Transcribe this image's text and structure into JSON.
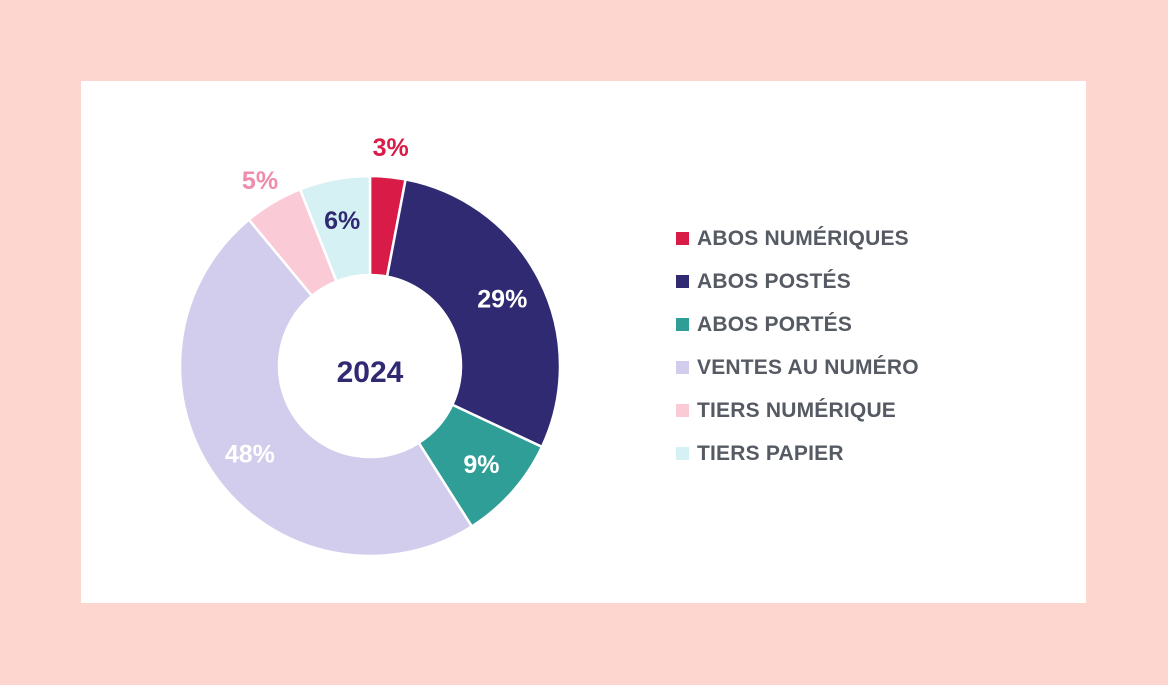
{
  "chart_data": {
    "type": "pie",
    "center_label": "2024",
    "slices": [
      {
        "label": "ABOS NUMÉRIQUES",
        "value": 3,
        "value_label": "3%",
        "color": "#d81b47",
        "label_color": "#d81b47"
      },
      {
        "label": "ABOS POSTÉS",
        "value": 29,
        "value_label": "29%",
        "color": "#2f2a72",
        "label_color": "#ffffff"
      },
      {
        "label": "ABOS PORTÉS",
        "value": 9,
        "value_label": "9%",
        "color": "#2e9e97",
        "label_color": "#ffffff"
      },
      {
        "label": "VENTES AU NUMÉRO",
        "value": 48,
        "value_label": "48%",
        "color": "#d2cdec",
        "label_color": "#ffffff"
      },
      {
        "label": "TIERS NUMÉRIQUE",
        "value": 5,
        "value_label": "5%",
        "color": "#fbcad7",
        "label_color": "#f08cab"
      },
      {
        "label": "TIERS PAPIER",
        "value": 6,
        "value_label": "6%",
        "color": "#d6f1f3",
        "label_color": "#2f2a72"
      }
    ],
    "legend_placement": "right"
  },
  "colors": {
    "background": "#fdd7cf",
    "card": "#ffffff",
    "center_text": "#2f2a72",
    "legend_text": "#555a63"
  }
}
